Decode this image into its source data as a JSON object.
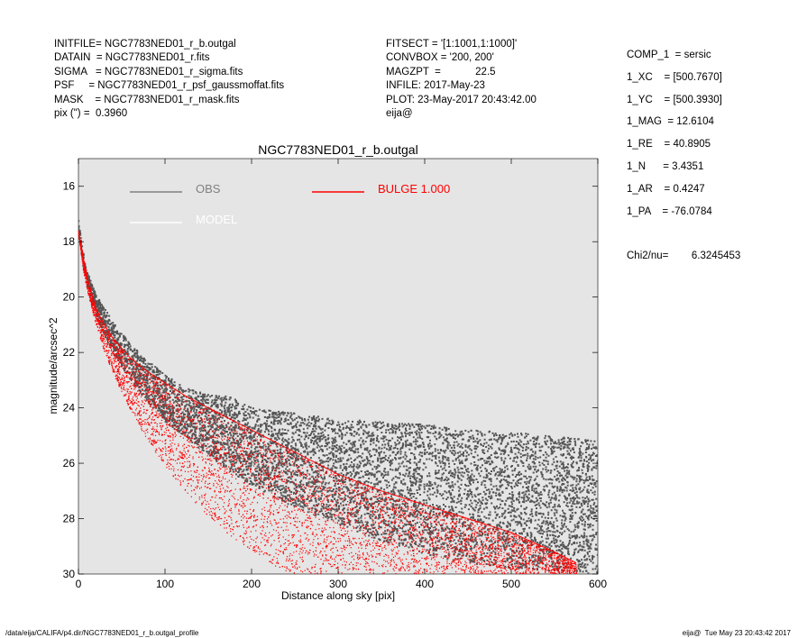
{
  "header_left": [
    "INITFILE= NGC7783NED01_r_b.outgal",
    "DATAIN  = NGC7783NED01_r.fits",
    "SIGMA   = NGC7783NED01_r_sigma.fits",
    "PSF     = NGC7783NED01_r_psf_gaussmoffat.fits",
    "MASK    = NGC7783NED01_r_mask.fits",
    "pix (\") =  0.3960"
  ],
  "header_mid": [
    "FITSECT = '[1:1001,1:1000]'",
    "CONVBOX = '200, 200'",
    "MAGZPT  =            22.5",
    "INFILE: 2017-May-23",
    "PLOT: 23-May-2017 20:43:42.00",
    "eija@"
  ],
  "header_right": [
    "COMP_1  = sersic",
    "1_XC    = [500.7670]",
    "1_YC    = [500.3930]",
    "1_MAG  = 12.6104",
    "1_RE    = 40.8905",
    "1_N      = 3.4351",
    "1_AR    = 0.4247",
    "1_PA    = -76.0784",
    "",
    "Chi2/nu=        6.3245453"
  ],
  "footer_left": "/data/eija/CALIFA/p4.dir/NGC7783NED01_r_b.outgal_profile",
  "footer_right": "eija@  Tue May 23 20:43:42 2017",
  "colors": {
    "background": "#e5e5e5",
    "obs": "#555555",
    "model": "#ffffff",
    "bulge": "#ff0000"
  },
  "chart_data": {
    "type": "scatter",
    "title": "NGC7783NED01_r_b.outgal",
    "xlabel": "Distance along sky [pix]",
    "ylabel": "magnitude/arcsec^2",
    "xlim": [
      0,
      600
    ],
    "ylim": [
      30,
      15
    ],
    "y_inverted": true,
    "xticks": [
      0,
      100,
      200,
      300,
      400,
      500,
      600
    ],
    "yticks": [
      16,
      18,
      20,
      22,
      24,
      26,
      28,
      30
    ],
    "grid": false,
    "legend": [
      {
        "label": "OBS",
        "color": "#808080",
        "position": "top-left"
      },
      {
        "label": "MODEL",
        "color": "#ffffff",
        "position": "top-left"
      },
      {
        "label": "BULGE  1.000",
        "color": "#ff0000",
        "position": "top-center"
      }
    ],
    "series": [
      {
        "name": "OBS",
        "color": "#555555",
        "x": [
          0,
          5,
          10,
          20,
          30,
          40,
          60,
          80,
          100,
          125,
          150,
          175,
          200,
          250,
          300,
          350,
          400,
          450,
          500,
          550,
          600
        ],
        "y_upper": [
          17.2,
          18.3,
          19.0,
          19.9,
          20.4,
          20.9,
          21.7,
          22.3,
          22.8,
          23.3,
          23.5,
          23.6,
          24.0,
          24.2,
          24.4,
          24.5,
          24.6,
          24.8,
          24.9,
          25.0,
          25.2
        ],
        "y_lower": [
          17.5,
          18.8,
          19.6,
          20.6,
          21.4,
          22.0,
          23.0,
          23.8,
          24.5,
          25.1,
          25.7,
          26.3,
          26.8,
          27.6,
          28.2,
          28.8,
          29.3,
          29.6,
          29.8,
          29.9,
          30.0
        ]
      },
      {
        "name": "BULGE  1.000",
        "color": "#ff0000",
        "x": [
          0,
          5,
          10,
          20,
          30,
          40,
          60,
          80,
          100,
          125,
          150,
          175,
          200,
          225,
          250,
          275,
          300,
          350,
          400,
          450,
          500,
          550,
          575
        ],
        "y_upper": [
          17.6,
          18.5,
          19.3,
          20.4,
          21.0,
          21.5,
          22.2,
          22.7,
          23.1,
          23.6,
          24.0,
          24.4,
          24.8,
          25.2,
          25.6,
          26.0,
          26.4,
          27.0,
          27.5,
          28.0,
          28.5,
          29.2,
          29.6
        ],
        "y_lower": [
          17.8,
          19.0,
          19.8,
          21.0,
          22.0,
          22.8,
          24.1,
          25.2,
          26.1,
          27.1,
          27.9,
          28.6,
          29.2,
          29.7,
          30.0,
          30.0,
          30.0,
          30.0,
          30.0,
          30.0,
          30.0,
          30.0,
          30.0
        ],
        "x_max_at_bottom": [
          330,
          575
        ]
      }
    ]
  }
}
